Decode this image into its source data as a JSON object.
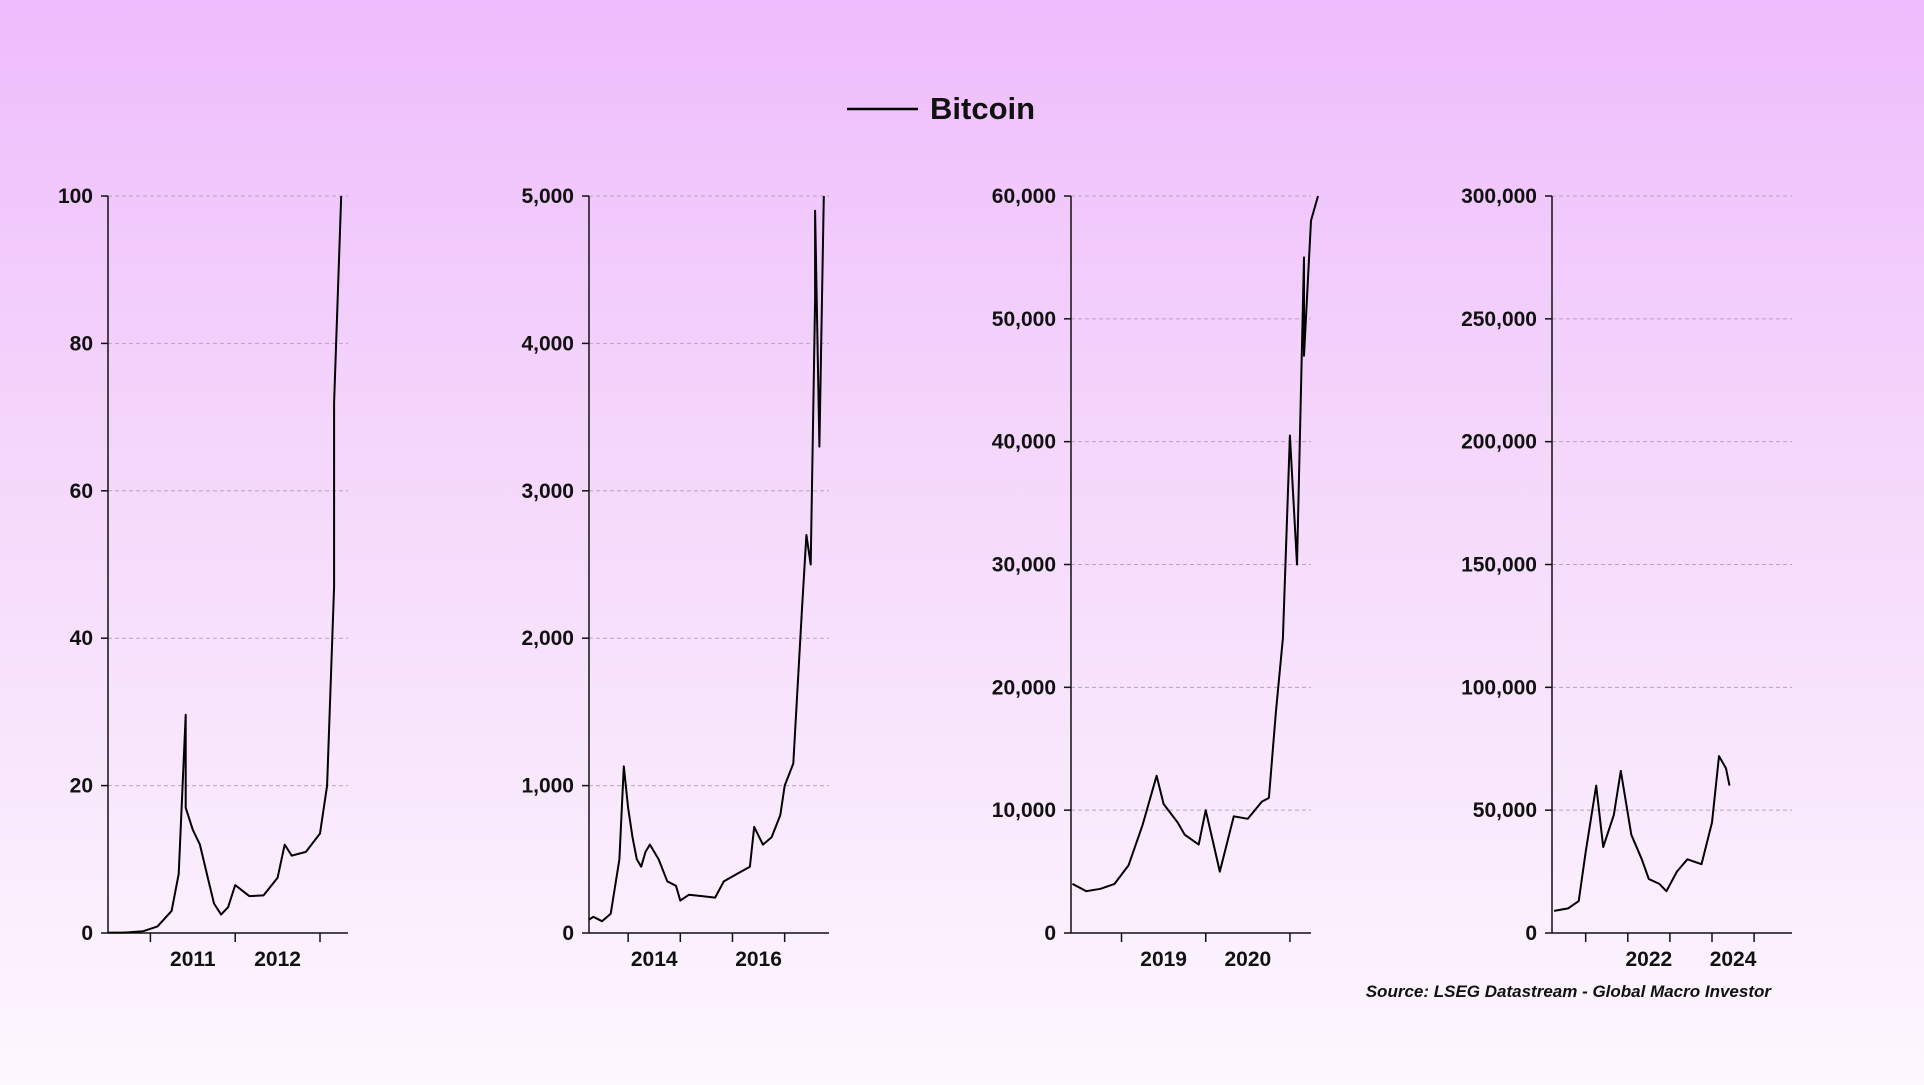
{
  "legend": {
    "label": "Bitcoin",
    "line_color": "#000000"
  },
  "source": "Source: LSEG Datastream - Global Macro Investor",
  "colors": {
    "background_top": "#eebcfc",
    "background_bottom": "#fdf7fe",
    "line": "#000000",
    "grid": "#b9a0c4"
  },
  "chart_data": [
    {
      "type": "line",
      "series": [
        {
          "name": "Bitcoin",
          "x": [
            "2010-07",
            "2010-09",
            "2010-10",
            "2010-12",
            "2011-02",
            "2011-04",
            "2011-05",
            "2011-06",
            "2011-06",
            "2011-07",
            "2011-08",
            "2011-09",
            "2011-10",
            "2011-11",
            "2011-12",
            "2012-01",
            "2012-03",
            "2012-05",
            "2012-07",
            "2012-08",
            "2012-09",
            "2012-11",
            "2013-01",
            "2013-02",
            "2013-03",
            "2013-03",
            "2013-04"
          ],
          "values": [
            0.05,
            0.06,
            0.1,
            0.25,
            0.9,
            3,
            8,
            29.6,
            17,
            14,
            12,
            8,
            4,
            2.5,
            3.5,
            6.5,
            5,
            5.1,
            7.5,
            12,
            10.5,
            11,
            13.5,
            20,
            47,
            72,
            100
          ]
        }
      ],
      "x_ticks": [
        "2011",
        "2012"
      ],
      "y_ticks": [
        "0",
        "20",
        "40",
        "60",
        "80",
        "100"
      ],
      "ylim": [
        0,
        100
      ],
      "grid": true
    },
    {
      "type": "line",
      "series": [
        {
          "name": "Bitcoin",
          "x": [
            "2013-04",
            "2013-05",
            "2013-07",
            "2013-09",
            "2013-11",
            "2013-12",
            "2014-01",
            "2014-02",
            "2014-03",
            "2014-04",
            "2014-05",
            "2014-06",
            "2014-08",
            "2014-10",
            "2014-12",
            "2015-01",
            "2015-03",
            "2015-06",
            "2015-09",
            "2015-11",
            "2016-02",
            "2016-05",
            "2016-06",
            "2016-08",
            "2016-10",
            "2016-12",
            "2017-01",
            "2017-03",
            "2017-05",
            "2017-06",
            "2017-07",
            "2017-08",
            "2017-08",
            "2017-09",
            "2017-10",
            "2017-10"
          ],
          "values": [
            90,
            110,
            80,
            130,
            500,
            1130,
            850,
            650,
            500,
            450,
            550,
            600,
            500,
            350,
            320,
            220,
            260,
            250,
            240,
            350,
            400,
            450,
            720,
            600,
            650,
            800,
            1000,
            1150,
            2200,
            2700,
            2500,
            4300,
            4900,
            3300,
            5000,
            5000
          ]
        }
      ],
      "x_ticks": [
        "2014",
        "2016"
      ],
      "y_ticks": [
        "0",
        "1,000",
        "2,000",
        "3,000",
        "4,000",
        "5,000"
      ],
      "ylim": [
        0,
        5000
      ],
      "grid": true
    },
    {
      "type": "line",
      "series": [
        {
          "name": "Bitcoin",
          "x": [
            "2018-06",
            "2018-08",
            "2018-10",
            "2018-12",
            "2019-02",
            "2019-04",
            "2019-06",
            "2019-07",
            "2019-09",
            "2019-10",
            "2019-12",
            "2020-01",
            "2020-02",
            "2020-03",
            "2020-05",
            "2020-07",
            "2020-09",
            "2020-10",
            "2020-11",
            "2020-12",
            "2021-01",
            "2021-02",
            "2021-03",
            "2021-03",
            "2021-04",
            "2021-05"
          ],
          "values": [
            4000,
            3400,
            3600,
            4000,
            5500,
            8800,
            12800,
            10500,
            9000,
            8000,
            7200,
            10000,
            7500,
            5000,
            9500,
            9300,
            10700,
            11000,
            18000,
            24000,
            40500,
            30000,
            55000,
            47000,
            58000,
            60000
          ]
        }
      ],
      "x_ticks": [
        "2019",
        "2020"
      ],
      "y_ticks": [
        "0",
        "10,000",
        "20,000",
        "30,000",
        "40,000",
        "50,000",
        "60,000"
      ],
      "ylim": [
        0,
        60000
      ],
      "grid": true
    },
    {
      "type": "line",
      "series": [
        {
          "name": "Bitcoin",
          "x": [
            "2020-04",
            "2020-08",
            "2020-11",
            "2021-01",
            "2021-04",
            "2021-06",
            "2021-09",
            "2021-11",
            "2022-02",
            "2022-05",
            "2022-07",
            "2022-10",
            "2022-12",
            "2023-03",
            "2023-06",
            "2023-10",
            "2024-01",
            "2024-03",
            "2024-05",
            "2024-06"
          ],
          "values": [
            9000,
            10000,
            13000,
            33000,
            60000,
            35000,
            48000,
            66000,
            40000,
            30000,
            22000,
            20000,
            17000,
            25000,
            30000,
            28000,
            45000,
            72000,
            67000,
            60000
          ]
        }
      ],
      "x_ticks": [
        "2022",
        "2024"
      ],
      "y_ticks": [
        "0",
        "50,000",
        "100,000",
        "150,000",
        "200,000",
        "250,000",
        "300,000"
      ],
      "ylim": [
        0,
        300000
      ],
      "grid": true
    }
  ]
}
